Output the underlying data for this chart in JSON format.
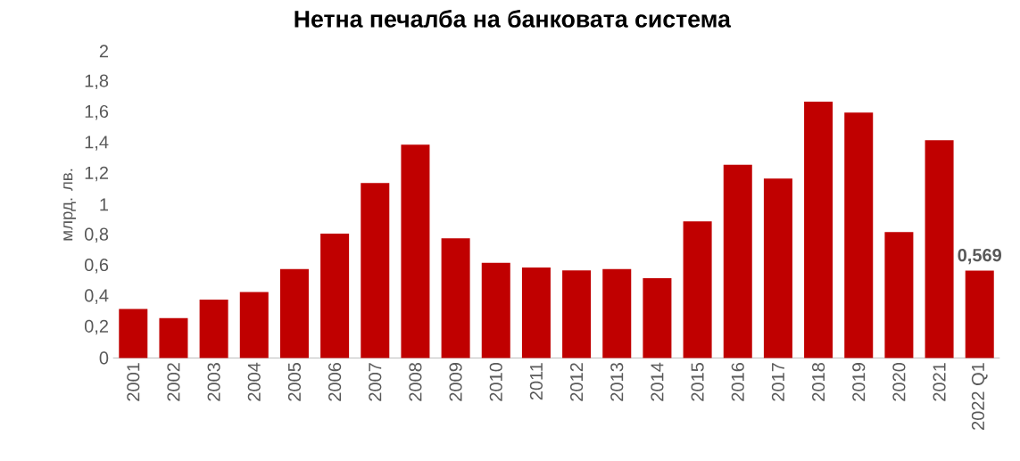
{
  "chart_data": {
    "type": "bar",
    "title": "Нетна печалба на банковата система",
    "ylabel": "млрд. лв.",
    "categories": [
      "2001",
      "2002",
      "2003",
      "2004",
      "2005",
      "2006",
      "2007",
      "2008",
      "2009",
      "2010",
      "2011",
      "2012",
      "2013",
      "2014",
      "2015",
      "2016",
      "2017",
      "2018",
      "2019",
      "2020",
      "2021",
      "2022 Q1"
    ],
    "values": [
      0.32,
      0.26,
      0.38,
      0.43,
      0.58,
      0.81,
      1.14,
      1.39,
      0.78,
      0.62,
      0.59,
      0.57,
      0.58,
      0.52,
      0.89,
      1.26,
      1.17,
      1.67,
      1.6,
      0.82,
      1.42,
      0.569
    ],
    "value_labels": [
      null,
      null,
      null,
      null,
      null,
      null,
      null,
      null,
      null,
      null,
      null,
      null,
      null,
      null,
      null,
      null,
      null,
      null,
      null,
      null,
      null,
      "0,569"
    ],
    "color": "#c00000",
    "ylim": [
      0,
      2
    ],
    "yticks": [
      0,
      {
        "value": 0.2,
        "label": "0,2"
      },
      {
        "value": 0.4,
        "label": "0,4"
      },
      {
        "value": 0.6,
        "label": "0,6"
      },
      {
        "value": 0.8,
        "label": "0,8"
      },
      1,
      {
        "value": 1.2,
        "label": "1,2"
      },
      {
        "value": 1.4,
        "label": "1,4"
      },
      {
        "value": 1.6,
        "label": "1,6"
      },
      {
        "value": 1.8,
        "label": "1,8"
      },
      2
    ],
    "grid": false
  }
}
